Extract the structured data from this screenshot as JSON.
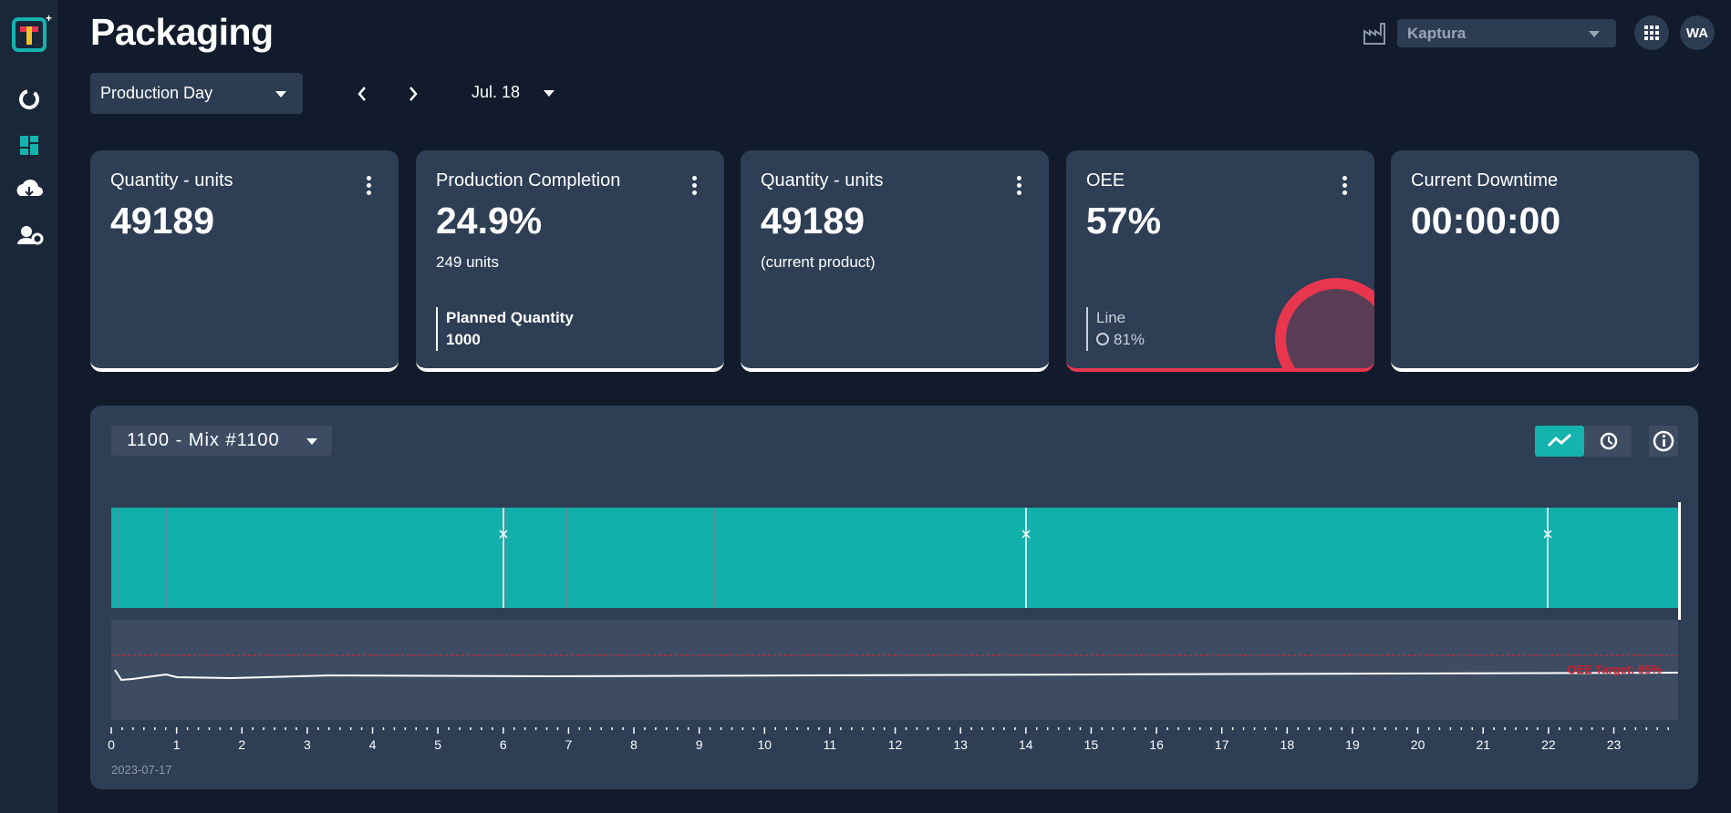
{
  "header": {
    "title": "Packaging",
    "site": "Kaptura",
    "user": "WA"
  },
  "filters": {
    "period": "Production Day",
    "date": "Jul. 18"
  },
  "cards": [
    {
      "title": "Quantity - units",
      "value": "49189"
    },
    {
      "title": "Production Completion",
      "value": "24.9%",
      "detail": "249 units",
      "sub_label": "Planned Quantity",
      "sub_value": "1000"
    },
    {
      "title": "Quantity - units",
      "value": "49189",
      "detail": "(current product)"
    },
    {
      "title": "OEE",
      "value": "57%",
      "sub_label": "Line",
      "sub_value": "81%"
    },
    {
      "title": "Current Downtime",
      "value": "00:00:00"
    }
  ],
  "timeline": {
    "product": "1100 - Mix #1100",
    "target_label": "OEE Target: 85%",
    "hours": [
      0,
      1,
      2,
      3,
      4,
      5,
      6,
      7,
      8,
      9,
      10,
      11,
      12,
      13,
      14,
      15,
      16,
      17,
      18,
      19,
      20,
      21,
      22,
      23
    ],
    "date": "2023-07-17"
  }
}
